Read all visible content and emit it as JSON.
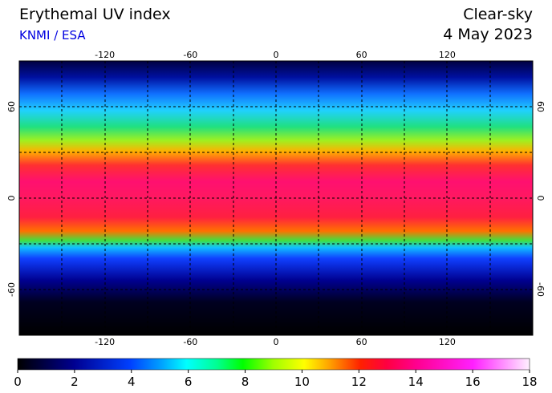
{
  "header": {
    "title": "Erythemal UV index",
    "source": "KNMI / ESA",
    "sky": "Clear-sky",
    "date": "4 May 2023"
  },
  "map": {
    "lon_ticks": [
      -120,
      -60,
      0,
      60,
      120
    ],
    "lat_ticks": [
      60,
      0,
      -60
    ]
  },
  "colorbar": {
    "ticks": [
      0,
      2,
      4,
      6,
      8,
      10,
      12,
      14,
      16,
      18
    ]
  }
}
